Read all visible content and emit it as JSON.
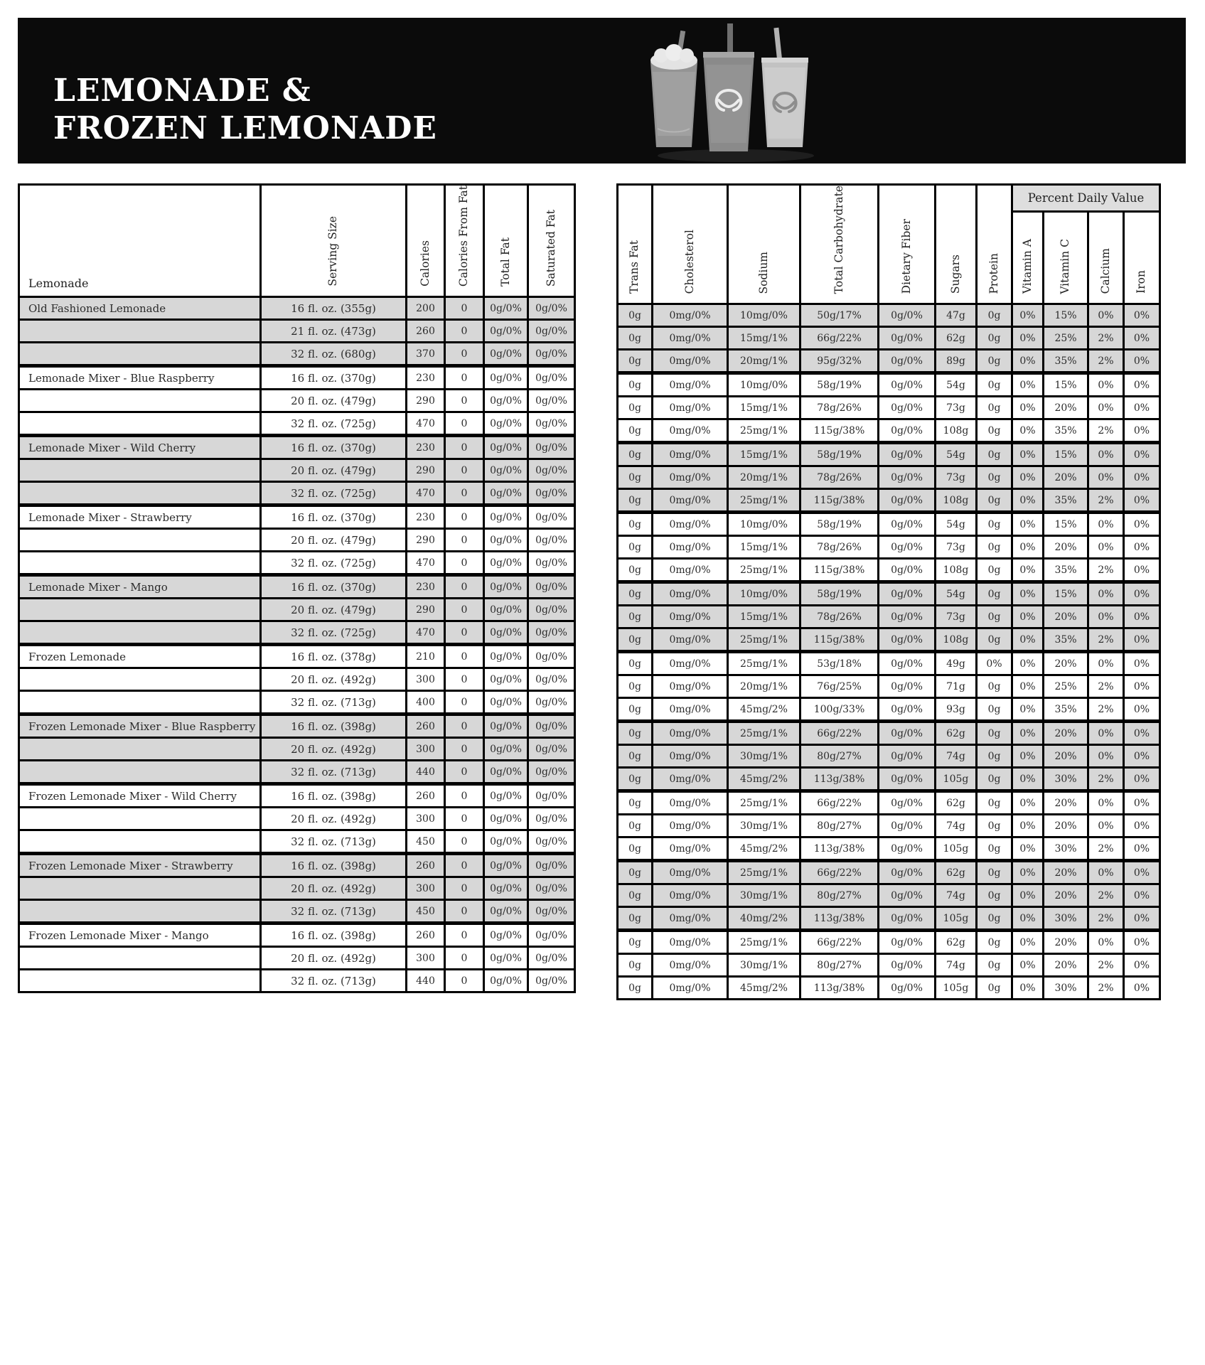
{
  "banner": {
    "title_line1": "LEMONADE &",
    "title_line2": "FROZEN LEMONADE",
    "background_color": "#0b0b0b",
    "title_color": "#ffffff",
    "image": "three-lemonade-cups-with-pretzel-logo"
  },
  "table": {
    "left_header_label": "Lemonade",
    "left_columns": [
      "Serving Size",
      "Calories",
      "Calories From Fat",
      "Total Fat",
      "Saturated Fat"
    ],
    "right_columns": [
      "Trans Fat",
      "Cholesterol",
      "Sodium",
      "Total Carbohydrate",
      "Dietary Fiber",
      "Sugars",
      "Protein"
    ],
    "pdv_label": "Percent Daily Value",
    "pdv_columns": [
      "Vitamin A",
      "Vitamin C",
      "Calcium",
      "Iron"
    ],
    "shade_color": "#d7d7d7",
    "left_keys": [
      "serving",
      "calories",
      "calories_from_fat",
      "total_fat",
      "saturated_fat"
    ],
    "right_keys": [
      "trans_fat",
      "cholesterol",
      "sodium",
      "total_carbohydrate",
      "dietary_fiber",
      "sugars",
      "protein",
      "vitamin_a",
      "vitamin_c",
      "calcium",
      "iron"
    ],
    "products": [
      {
        "name": "Old Fashioned Lemonade",
        "rows": [
          {
            "serving": "16 fl. oz. (355g)",
            "calories": "200",
            "calories_from_fat": "0",
            "total_fat": "0g/0%",
            "saturated_fat": "0g/0%",
            "trans_fat": "0g",
            "cholesterol": "0mg/0%",
            "sodium": "10mg/0%",
            "total_carbohydrate": "50g/17%",
            "dietary_fiber": "0g/0%",
            "sugars": "47g",
            "protein": "0g",
            "vitamin_a": "0%",
            "vitamin_c": "15%",
            "calcium": "0%",
            "iron": "0%"
          },
          {
            "serving": "21 fl. oz. (473g)",
            "calories": "260",
            "calories_from_fat": "0",
            "total_fat": "0g/0%",
            "saturated_fat": "0g/0%",
            "trans_fat": "0g",
            "cholesterol": "0mg/0%",
            "sodium": "15mg/1%",
            "total_carbohydrate": "66g/22%",
            "dietary_fiber": "0g/0%",
            "sugars": "62g",
            "protein": "0g",
            "vitamin_a": "0%",
            "vitamin_c": "25%",
            "calcium": "2%",
            "iron": "0%"
          },
          {
            "serving": "32 fl. oz. (680g)",
            "calories": "370",
            "calories_from_fat": "0",
            "total_fat": "0g/0%",
            "saturated_fat": "0g/0%",
            "trans_fat": "0g",
            "cholesterol": "0mg/0%",
            "sodium": "20mg/1%",
            "total_carbohydrate": "95g/32%",
            "dietary_fiber": "0g/0%",
            "sugars": "89g",
            "protein": "0g",
            "vitamin_a": "0%",
            "vitamin_c": "35%",
            "calcium": "2%",
            "iron": "0%"
          }
        ]
      },
      {
        "name": "Lemonade Mixer - Blue Raspberry",
        "rows": [
          {
            "serving": "16 fl. oz. (370g)",
            "calories": "230",
            "calories_from_fat": "0",
            "total_fat": "0g/0%",
            "saturated_fat": "0g/0%",
            "trans_fat": "0g",
            "cholesterol": "0mg/0%",
            "sodium": "10mg/0%",
            "total_carbohydrate": "58g/19%",
            "dietary_fiber": "0g/0%",
            "sugars": "54g",
            "protein": "0g",
            "vitamin_a": "0%",
            "vitamin_c": "15%",
            "calcium": "0%",
            "iron": "0%"
          },
          {
            "serving": "20 fl. oz. (479g)",
            "calories": "290",
            "calories_from_fat": "0",
            "total_fat": "0g/0%",
            "saturated_fat": "0g/0%",
            "trans_fat": "0g",
            "cholesterol": "0mg/0%",
            "sodium": "15mg/1%",
            "total_carbohydrate": "78g/26%",
            "dietary_fiber": "0g/0%",
            "sugars": "73g",
            "protein": "0g",
            "vitamin_a": "0%",
            "vitamin_c": "20%",
            "calcium": "0%",
            "iron": "0%"
          },
          {
            "serving": "32 fl. oz. (725g)",
            "calories": "470",
            "calories_from_fat": "0",
            "total_fat": "0g/0%",
            "saturated_fat": "0g/0%",
            "trans_fat": "0g",
            "cholesterol": "0mg/0%",
            "sodium": "25mg/1%",
            "total_carbohydrate": "115g/38%",
            "dietary_fiber": "0g/0%",
            "sugars": "108g",
            "protein": "0g",
            "vitamin_a": "0%",
            "vitamin_c": "35%",
            "calcium": "2%",
            "iron": "0%"
          }
        ]
      },
      {
        "name": "Lemonade Mixer - Wild Cherry",
        "rows": [
          {
            "serving": "16 fl. oz. (370g)",
            "calories": "230",
            "calories_from_fat": "0",
            "total_fat": "0g/0%",
            "saturated_fat": "0g/0%",
            "trans_fat": "0g",
            "cholesterol": "0mg/0%",
            "sodium": "15mg/1%",
            "total_carbohydrate": "58g/19%",
            "dietary_fiber": "0g/0%",
            "sugars": "54g",
            "protein": "0g",
            "vitamin_a": "0%",
            "vitamin_c": "15%",
            "calcium": "0%",
            "iron": "0%"
          },
          {
            "serving": "20 fl. oz. (479g)",
            "calories": "290",
            "calories_from_fat": "0",
            "total_fat": "0g/0%",
            "saturated_fat": "0g/0%",
            "trans_fat": "0g",
            "cholesterol": "0mg/0%",
            "sodium": "20mg/1%",
            "total_carbohydrate": "78g/26%",
            "dietary_fiber": "0g/0%",
            "sugars": "73g",
            "protein": "0g",
            "vitamin_a": "0%",
            "vitamin_c": "20%",
            "calcium": "0%",
            "iron": "0%"
          },
          {
            "serving": "32 fl. oz. (725g)",
            "calories": "470",
            "calories_from_fat": "0",
            "total_fat": "0g/0%",
            "saturated_fat": "0g/0%",
            "trans_fat": "0g",
            "cholesterol": "0mg/0%",
            "sodium": "25mg/1%",
            "total_carbohydrate": "115g/38%",
            "dietary_fiber": "0g/0%",
            "sugars": "108g",
            "protein": "0g",
            "vitamin_a": "0%",
            "vitamin_c": "35%",
            "calcium": "2%",
            "iron": "0%"
          }
        ]
      },
      {
        "name": "Lemonade Mixer - Strawberry",
        "rows": [
          {
            "serving": "16 fl. oz. (370g)",
            "calories": "230",
            "calories_from_fat": "0",
            "total_fat": "0g/0%",
            "saturated_fat": "0g/0%",
            "trans_fat": "0g",
            "cholesterol": "0mg/0%",
            "sodium": "10mg/0%",
            "total_carbohydrate": "58g/19%",
            "dietary_fiber": "0g/0%",
            "sugars": "54g",
            "protein": "0g",
            "vitamin_a": "0%",
            "vitamin_c": "15%",
            "calcium": "0%",
            "iron": "0%"
          },
          {
            "serving": "20 fl. oz. (479g)",
            "calories": "290",
            "calories_from_fat": "0",
            "total_fat": "0g/0%",
            "saturated_fat": "0g/0%",
            "trans_fat": "0g",
            "cholesterol": "0mg/0%",
            "sodium": "15mg/1%",
            "total_carbohydrate": "78g/26%",
            "dietary_fiber": "0g/0%",
            "sugars": "73g",
            "protein": "0g",
            "vitamin_a": "0%",
            "vitamin_c": "20%",
            "calcium": "0%",
            "iron": "0%"
          },
          {
            "serving": "32 fl. oz. (725g)",
            "calories": "470",
            "calories_from_fat": "0",
            "total_fat": "0g/0%",
            "saturated_fat": "0g/0%",
            "trans_fat": "0g",
            "cholesterol": "0mg/0%",
            "sodium": "25mg/1%",
            "total_carbohydrate": "115g/38%",
            "dietary_fiber": "0g/0%",
            "sugars": "108g",
            "protein": "0g",
            "vitamin_a": "0%",
            "vitamin_c": "35%",
            "calcium": "2%",
            "iron": "0%"
          }
        ]
      },
      {
        "name": "Lemonade Mixer - Mango",
        "rows": [
          {
            "serving": "16 fl. oz. (370g)",
            "calories": "230",
            "calories_from_fat": "0",
            "total_fat": "0g/0%",
            "saturated_fat": "0g/0%",
            "trans_fat": "0g",
            "cholesterol": "0mg/0%",
            "sodium": "10mg/0%",
            "total_carbohydrate": "58g/19%",
            "dietary_fiber": "0g/0%",
            "sugars": "54g",
            "protein": "0g",
            "vitamin_a": "0%",
            "vitamin_c": "15%",
            "calcium": "0%",
            "iron": "0%"
          },
          {
            "serving": "20 fl. oz. (479g)",
            "calories": "290",
            "calories_from_fat": "0",
            "total_fat": "0g/0%",
            "saturated_fat": "0g/0%",
            "trans_fat": "0g",
            "cholesterol": "0mg/0%",
            "sodium": "15mg/1%",
            "total_carbohydrate": "78g/26%",
            "dietary_fiber": "0g/0%",
            "sugars": "73g",
            "protein": "0g",
            "vitamin_a": "0%",
            "vitamin_c": "20%",
            "calcium": "0%",
            "iron": "0%"
          },
          {
            "serving": "32 fl. oz. (725g)",
            "calories": "470",
            "calories_from_fat": "0",
            "total_fat": "0g/0%",
            "saturated_fat": "0g/0%",
            "trans_fat": "0g",
            "cholesterol": "0mg/0%",
            "sodium": "25mg/1%",
            "total_carbohydrate": "115g/38%",
            "dietary_fiber": "0g/0%",
            "sugars": "108g",
            "protein": "0g",
            "vitamin_a": "0%",
            "vitamin_c": "35%",
            "calcium": "2%",
            "iron": "0%"
          }
        ]
      },
      {
        "name": "Frozen Lemonade",
        "rows": [
          {
            "serving": "16 fl. oz. (378g)",
            "calories": "210",
            "calories_from_fat": "0",
            "total_fat": "0g/0%",
            "saturated_fat": "0g/0%",
            "trans_fat": "0g",
            "cholesterol": "0mg/0%",
            "sodium": "25mg/1%",
            "total_carbohydrate": "53g/18%",
            "dietary_fiber": "0g/0%",
            "sugars": "49g",
            "protein": "0%",
            "vitamin_a": "0%",
            "vitamin_c": "20%",
            "calcium": "0%",
            "iron": "0%"
          },
          {
            "serving": "20 fl. oz. (492g)",
            "calories": "300",
            "calories_from_fat": "0",
            "total_fat": "0g/0%",
            "saturated_fat": "0g/0%",
            "trans_fat": "0g",
            "cholesterol": "0mg/0%",
            "sodium": "20mg/1%",
            "total_carbohydrate": "76g/25%",
            "dietary_fiber": "0g/0%",
            "sugars": "71g",
            "protein": "0g",
            "vitamin_a": "0%",
            "vitamin_c": "25%",
            "calcium": "2%",
            "iron": "0%"
          },
          {
            "serving": "32 fl. oz. (713g)",
            "calories": "400",
            "calories_from_fat": "0",
            "total_fat": "0g/0%",
            "saturated_fat": "0g/0%",
            "trans_fat": "0g",
            "cholesterol": "0mg/0%",
            "sodium": "45mg/2%",
            "total_carbohydrate": "100g/33%",
            "dietary_fiber": "0g/0%",
            "sugars": "93g",
            "protein": "0g",
            "vitamin_a": "0%",
            "vitamin_c": "35%",
            "calcium": "2%",
            "iron": "0%"
          }
        ]
      },
      {
        "name": "Frozen Lemonade Mixer - Blue Raspberry",
        "rows": [
          {
            "serving": "16 fl. oz. (398g)",
            "calories": "260",
            "calories_from_fat": "0",
            "total_fat": "0g/0%",
            "saturated_fat": "0g/0%",
            "trans_fat": "0g",
            "cholesterol": "0mg/0%",
            "sodium": "25mg/1%",
            "total_carbohydrate": "66g/22%",
            "dietary_fiber": "0g/0%",
            "sugars": "62g",
            "protein": "0g",
            "vitamin_a": "0%",
            "vitamin_c": "20%",
            "calcium": "0%",
            "iron": "0%"
          },
          {
            "serving": "20 fl. oz. (492g)",
            "calories": "300",
            "calories_from_fat": "0",
            "total_fat": "0g/0%",
            "saturated_fat": "0g/0%",
            "trans_fat": "0g",
            "cholesterol": "0mg/0%",
            "sodium": "30mg/1%",
            "total_carbohydrate": "80g/27%",
            "dietary_fiber": "0g/0%",
            "sugars": "74g",
            "protein": "0g",
            "vitamin_a": "0%",
            "vitamin_c": "20%",
            "calcium": "0%",
            "iron": "0%"
          },
          {
            "serving": "32 fl. oz. (713g)",
            "calories": "440",
            "calories_from_fat": "0",
            "total_fat": "0g/0%",
            "saturated_fat": "0g/0%",
            "trans_fat": "0g",
            "cholesterol": "0mg/0%",
            "sodium": "45mg/2%",
            "total_carbohydrate": "113g/38%",
            "dietary_fiber": "0g/0%",
            "sugars": "105g",
            "protein": "0g",
            "vitamin_a": "0%",
            "vitamin_c": "30%",
            "calcium": "2%",
            "iron": "0%"
          }
        ]
      },
      {
        "name": "Frozen Lemonade Mixer - Wild Cherry",
        "rows": [
          {
            "serving": "16 fl. oz. (398g)",
            "calories": "260",
            "calories_from_fat": "0",
            "total_fat": "0g/0%",
            "saturated_fat": "0g/0%",
            "trans_fat": "0g",
            "cholesterol": "0mg/0%",
            "sodium": "25mg/1%",
            "total_carbohydrate": "66g/22%",
            "dietary_fiber": "0g/0%",
            "sugars": "62g",
            "protein": "0g",
            "vitamin_a": "0%",
            "vitamin_c": "20%",
            "calcium": "0%",
            "iron": "0%"
          },
          {
            "serving": "20 fl. oz. (492g)",
            "calories": "300",
            "calories_from_fat": "0",
            "total_fat": "0g/0%",
            "saturated_fat": "0g/0%",
            "trans_fat": "0g",
            "cholesterol": "0mg/0%",
            "sodium": "30mg/1%",
            "total_carbohydrate": "80g/27%",
            "dietary_fiber": "0g/0%",
            "sugars": "74g",
            "protein": "0g",
            "vitamin_a": "0%",
            "vitamin_c": "20%",
            "calcium": "0%",
            "iron": "0%"
          },
          {
            "serving": "32 fl. oz. (713g)",
            "calories": "450",
            "calories_from_fat": "0",
            "total_fat": "0g/0%",
            "saturated_fat": "0g/0%",
            "trans_fat": "0g",
            "cholesterol": "0mg/0%",
            "sodium": "45mg/2%",
            "total_carbohydrate": "113g/38%",
            "dietary_fiber": "0g/0%",
            "sugars": "105g",
            "protein": "0g",
            "vitamin_a": "0%",
            "vitamin_c": "30%",
            "calcium": "2%",
            "iron": "0%"
          }
        ]
      },
      {
        "name": "Frozen Lemonade Mixer - Strawberry",
        "rows": [
          {
            "serving": "16 fl. oz. (398g)",
            "calories": "260",
            "calories_from_fat": "0",
            "total_fat": "0g/0%",
            "saturated_fat": "0g/0%",
            "trans_fat": "0g",
            "cholesterol": "0mg/0%",
            "sodium": "25mg/1%",
            "total_carbohydrate": "66g/22%",
            "dietary_fiber": "0g/0%",
            "sugars": "62g",
            "protein": "0g",
            "vitamin_a": "0%",
            "vitamin_c": "20%",
            "calcium": "0%",
            "iron": "0%"
          },
          {
            "serving": "20 fl. oz. (492g)",
            "calories": "300",
            "calories_from_fat": "0",
            "total_fat": "0g/0%",
            "saturated_fat": "0g/0%",
            "trans_fat": "0g",
            "cholesterol": "0mg/0%",
            "sodium": "30mg/1%",
            "total_carbohydrate": "80g/27%",
            "dietary_fiber": "0g/0%",
            "sugars": "74g",
            "protein": "0g",
            "vitamin_a": "0%",
            "vitamin_c": "20%",
            "calcium": "2%",
            "iron": "0%"
          },
          {
            "serving": "32 fl. oz. (713g)",
            "calories": "450",
            "calories_from_fat": "0",
            "total_fat": "0g/0%",
            "saturated_fat": "0g/0%",
            "trans_fat": "0g",
            "cholesterol": "0mg/0%",
            "sodium": "40mg/2%",
            "total_carbohydrate": "113g/38%",
            "dietary_fiber": "0g/0%",
            "sugars": "105g",
            "protein": "0g",
            "vitamin_a": "0%",
            "vitamin_c": "30%",
            "calcium": "2%",
            "iron": "0%"
          }
        ]
      },
      {
        "name": "Frozen Lemonade Mixer - Mango",
        "rows": [
          {
            "serving": "16 fl. oz. (398g)",
            "calories": "260",
            "calories_from_fat": "0",
            "total_fat": "0g/0%",
            "saturated_fat": "0g/0%",
            "trans_fat": "0g",
            "cholesterol": "0mg/0%",
            "sodium": "25mg/1%",
            "total_carbohydrate": "66g/22%",
            "dietary_fiber": "0g/0%",
            "sugars": "62g",
            "protein": "0g",
            "vitamin_a": "0%",
            "vitamin_c": "20%",
            "calcium": "0%",
            "iron": "0%"
          },
          {
            "serving": "20 fl. oz. (492g)",
            "calories": "300",
            "calories_from_fat": "0",
            "total_fat": "0g/0%",
            "saturated_fat": "0g/0%",
            "trans_fat": "0g",
            "cholesterol": "0mg/0%",
            "sodium": "30mg/1%",
            "total_carbohydrate": "80g/27%",
            "dietary_fiber": "0g/0%",
            "sugars": "74g",
            "protein": "0g",
            "vitamin_a": "0%",
            "vitamin_c": "20%",
            "calcium": "2%",
            "iron": "0%"
          },
          {
            "serving": "32 fl. oz. (713g)",
            "calories": "440",
            "calories_from_fat": "0",
            "total_fat": "0g/0%",
            "saturated_fat": "0g/0%",
            "trans_fat": "0g",
            "cholesterol": "0mg/0%",
            "sodium": "45mg/2%",
            "total_carbohydrate": "113g/38%",
            "dietary_fiber": "0g/0%",
            "sugars": "105g",
            "protein": "0g",
            "vitamin_a": "0%",
            "vitamin_c": "30%",
            "calcium": "2%",
            "iron": "0%"
          }
        ]
      }
    ]
  }
}
